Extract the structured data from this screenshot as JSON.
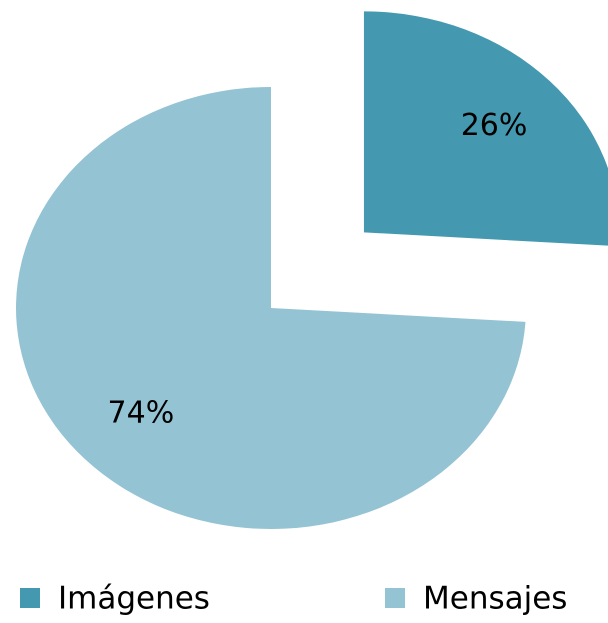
{
  "chart_data": {
    "type": "pie",
    "categories": [
      "Imágenes",
      "Mensajes"
    ],
    "values": [
      26,
      74
    ],
    "value_labels": [
      "26%",
      "74%"
    ],
    "colors": [
      "#4499b0",
      "#94c3d4"
    ],
    "exploded": [
      true,
      false
    ],
    "legend": "bottom"
  }
}
